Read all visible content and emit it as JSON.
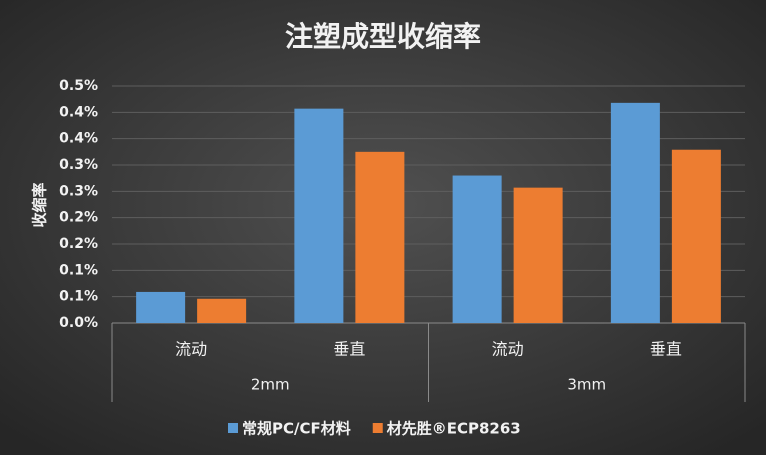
{
  "chart_data": {
    "type": "bar",
    "title": "注塑成型收缩率",
    "y_label": "收缩率",
    "categories": [
      "流动",
      "垂直",
      "流动",
      "垂直"
    ],
    "category_groups": [
      "2mm",
      "3mm"
    ],
    "series": [
      {
        "name": "常规PC/CF材料",
        "color": "#5b9bd5",
        "values": [
          0.059,
          0.407,
          0.28,
          0.418
        ]
      },
      {
        "name": "材先胜®ECP8263",
        "color": "#ed7d31",
        "values": [
          0.046,
          0.325,
          0.257,
          0.329
        ]
      }
    ],
    "ylim": [
      0,
      0.45
    ],
    "yticks": [
      {
        "value": 0,
        "label": "0.0%"
      },
      {
        "value": 0.05,
        "label": "0.1%"
      },
      {
        "value": 0.1,
        "label": "0.1%"
      },
      {
        "value": 0.15,
        "label": "0.2%"
      },
      {
        "value": 0.2,
        "label": "0.2%"
      },
      {
        "value": 0.25,
        "label": "0.3%"
      },
      {
        "value": 0.3,
        "label": "0.3%"
      },
      {
        "value": 0.35,
        "label": "0.4%"
      },
      {
        "value": 0.4,
        "label": "0.4%"
      },
      {
        "value": 0.45,
        "label": "0.5%"
      }
    ],
    "grid": true,
    "legend": "bottom"
  }
}
